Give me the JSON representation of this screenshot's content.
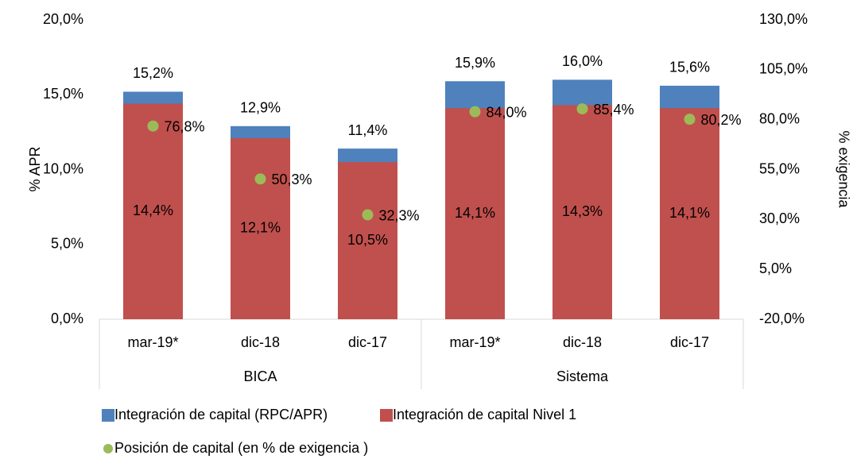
{
  "chart_data": {
    "type": "bar",
    "y_label": "% APR",
    "y2_label": "% exigencia",
    "groups": [
      {
        "label": "BICA",
        "categories": [
          "mar-19*",
          "dic-18",
          "dic-17"
        ]
      },
      {
        "label": "Sistema",
        "categories": [
          "mar-19*",
          "dic-18",
          "dic-17"
        ]
      }
    ],
    "series": [
      {
        "name": "Integración de capital (RPC/APR)",
        "type": "bar",
        "color": "#4f81bd",
        "values": [
          15.2,
          12.9,
          11.4,
          15.9,
          16.0,
          15.6
        ],
        "value_labels": [
          "15,2%",
          "12,9%",
          "11,4%",
          "15,9%",
          "16,0%",
          "15,6%"
        ]
      },
      {
        "name": "Integración de capital Nivel 1",
        "type": "bar",
        "color": "#c0504d",
        "values": [
          14.4,
          12.1,
          10.5,
          14.1,
          14.3,
          14.1
        ],
        "value_labels": [
          "14,4%",
          "12,1%",
          "10,5%",
          "14,1%",
          "14,3%",
          "14,1%"
        ]
      },
      {
        "name": "Posición de capital (en % de exigencia )",
        "type": "scatter",
        "axis": "y2",
        "color": "#9bbb59",
        "values": [
          76.8,
          50.3,
          32.3,
          84.0,
          85.4,
          80.2
        ],
        "value_labels": [
          "76,8%",
          "50,3%",
          "32,3%",
          "84,0%",
          "85,4%",
          "80,2%"
        ]
      }
    ],
    "overlap": true,
    "ylim": [
      0,
      20
    ],
    "yticks": [
      {
        "value": 0,
        "label": "0,0%"
      },
      {
        "value": 5,
        "label": "5,0%"
      },
      {
        "value": 10,
        "label": "10,0%"
      },
      {
        "value": 15,
        "label": "15,0%"
      },
      {
        "value": 20,
        "label": "20,0%"
      }
    ],
    "y2lim": [
      -20,
      130
    ],
    "y2ticks": [
      {
        "value": -20,
        "label": "-20,0%"
      },
      {
        "value": 5,
        "label": "5,0%"
      },
      {
        "value": 30,
        "label": "30,0%"
      },
      {
        "value": 55,
        "label": "55,0%"
      },
      {
        "value": 80,
        "label": "80,0%"
      },
      {
        "value": 105,
        "label": "105,0%"
      },
      {
        "value": 130,
        "label": "130,0%"
      }
    ],
    "grid": false,
    "legend": "bottom"
  }
}
